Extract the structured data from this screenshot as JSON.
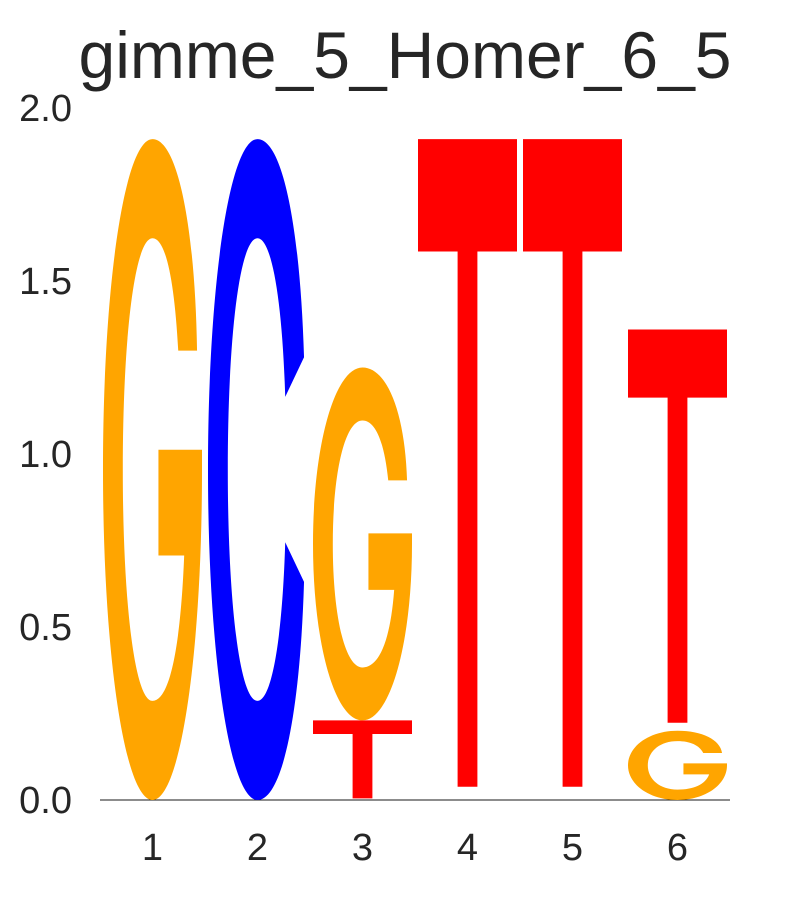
{
  "chart_data": {
    "type": "sequence-logo",
    "title": "gimme_5_Homer_6_5",
    "xlabel": "",
    "ylabel": "",
    "ylim": [
      0,
      2.0
    ],
    "yticks": [
      "0.0",
      "0.5",
      "1.0",
      "1.5",
      "2.0"
    ],
    "positions": [
      "1",
      "2",
      "3",
      "4",
      "5",
      "6"
    ],
    "colors": {
      "A": "#00aa00",
      "C": "#0000ff",
      "G": "#ffa500",
      "T": "#ff0000"
    },
    "stacks": [
      [
        {
          "letter": "G",
          "height": 1.91
        }
      ],
      [
        {
          "letter": "C",
          "height": 1.91
        }
      ],
      [
        {
          "letter": "T",
          "height": 0.23
        },
        {
          "letter": "G",
          "height": 1.02
        }
      ],
      [
        {
          "letter": "T",
          "height": 1.91
        }
      ],
      [
        {
          "letter": "T",
          "height": 1.91
        }
      ],
      [
        {
          "letter": "G",
          "height": 0.2
        },
        {
          "letter": "T",
          "height": 1.16
        }
      ]
    ]
  }
}
